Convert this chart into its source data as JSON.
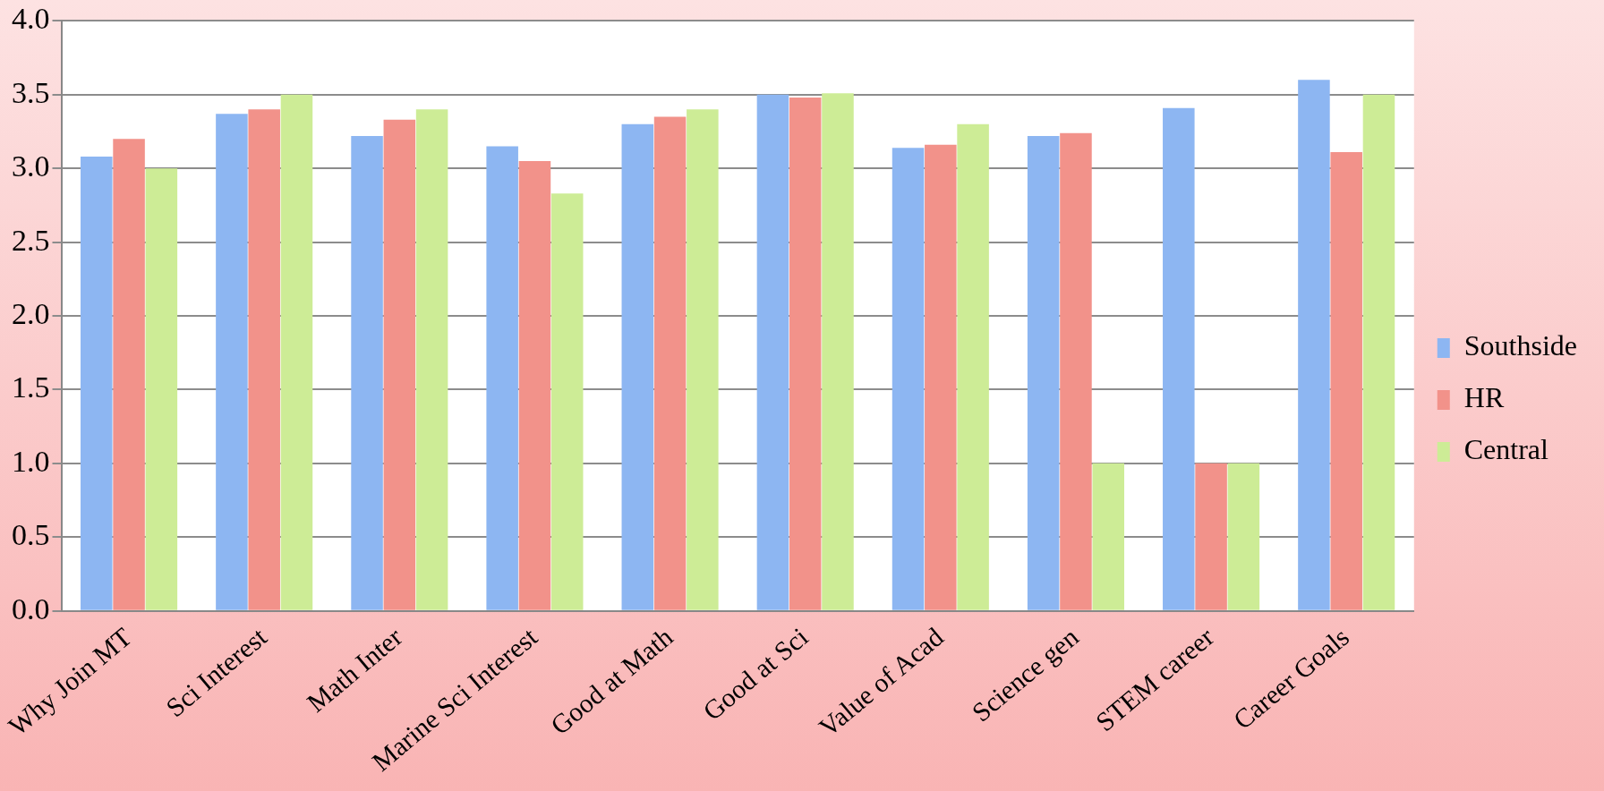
{
  "chart_data": {
    "type": "bar",
    "categories": [
      "Why Join MT",
      "Sci Interest",
      "Math Inter",
      "Marine Sci Interest",
      "Good at Math",
      "Good at Sci",
      "Value of Acad",
      "Science gen",
      "STEM career",
      "Career Goals"
    ],
    "series": [
      {
        "name": "Southside",
        "color": "#8db6f2",
        "values": [
          3.08,
          3.37,
          3.22,
          3.15,
          3.3,
          3.5,
          3.14,
          3.22,
          3.41,
          3.6
        ]
      },
      {
        "name": "HR",
        "color": "#f2928a",
        "values": [
          3.2,
          3.4,
          3.33,
          3.05,
          3.35,
          3.48,
          3.16,
          3.24,
          1.0,
          3.11
        ]
      },
      {
        "name": "Central",
        "color": "#cdec96",
        "values": [
          3.0,
          3.5,
          3.4,
          2.83,
          3.4,
          3.51,
          3.3,
          1.0,
          1.0,
          3.5
        ]
      }
    ],
    "ylim": [
      0,
      4
    ],
    "yticks": [
      {
        "value": 0,
        "label": "0.0"
      },
      {
        "value": 0.5,
        "label": "0.5"
      },
      {
        "value": 1,
        "label": "1.0"
      },
      {
        "value": 1.5,
        "label": "1.5"
      },
      {
        "value": 2,
        "label": "2.0"
      },
      {
        "value": 2.5,
        "label": "2.5"
      },
      {
        "value": 3,
        "label": "3.0"
      },
      {
        "value": 3.5,
        "label": "3.5"
      },
      {
        "value": 4,
        "label": "4.0"
      }
    ],
    "grid": "y",
    "legend": "right"
  }
}
